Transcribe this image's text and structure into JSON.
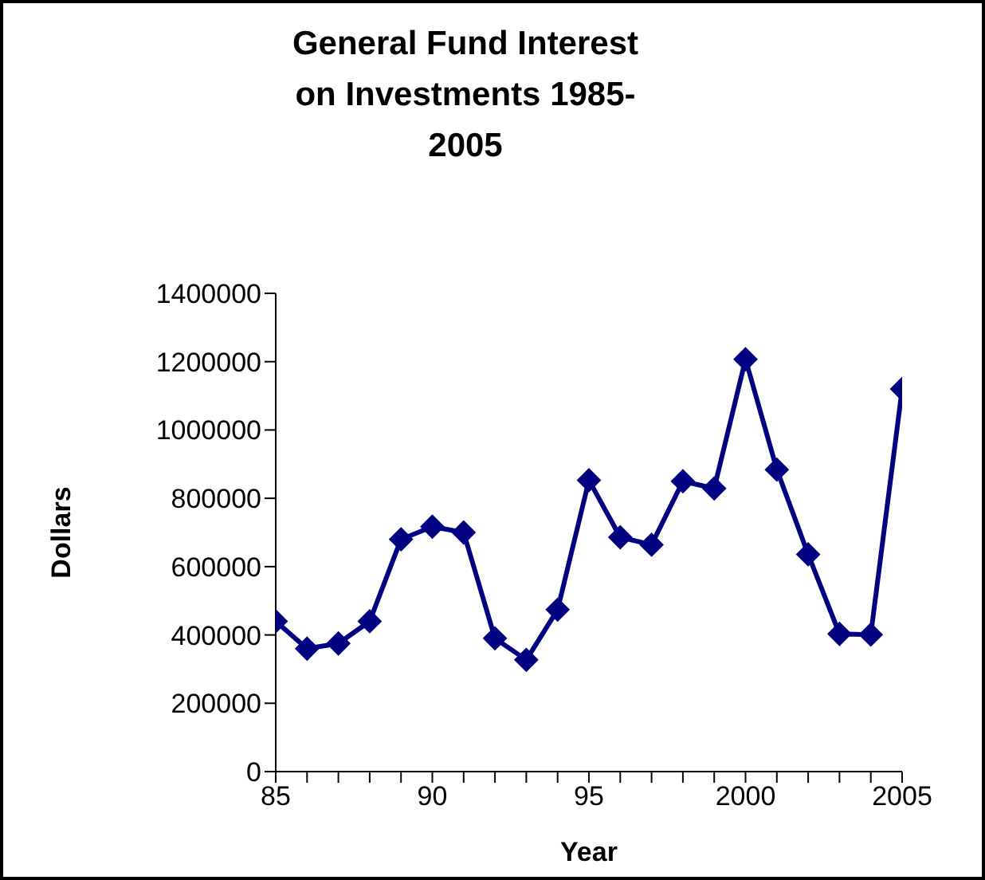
{
  "chart_data": {
    "type": "line",
    "title": "General Fund Interest on Investments 1985-2005",
    "xlabel": "Year",
    "ylabel": "Dollars",
    "x": [
      1985,
      1986,
      1987,
      1988,
      1989,
      1990,
      1991,
      1992,
      1993,
      1994,
      1995,
      1996,
      1997,
      1998,
      1999,
      2000,
      2001,
      2002,
      2003,
      2004,
      2005
    ],
    "series": [
      {
        "color": "#000080",
        "values": [
          440000,
          360000,
          375000,
          440000,
          680000,
          717000,
          700000,
          390000,
          327000,
          474000,
          853000,
          686000,
          664000,
          850000,
          829000,
          1207000,
          884000,
          636000,
          403000,
          401000,
          1120000
        ]
      }
    ],
    "xlim": [
      1985,
      2005
    ],
    "xticks": [
      {
        "value": 1985,
        "label": "85"
      },
      {
        "value": 1986,
        "label": null
      },
      {
        "value": 1987,
        "label": null
      },
      {
        "value": 1988,
        "label": null
      },
      {
        "value": 1989,
        "label": null
      },
      {
        "value": 1990,
        "label": "90"
      },
      {
        "value": 1991,
        "label": null
      },
      {
        "value": 1992,
        "label": null
      },
      {
        "value": 1993,
        "label": null
      },
      {
        "value": 1994,
        "label": null
      },
      {
        "value": 1995,
        "label": "95"
      },
      {
        "value": 1996,
        "label": null
      },
      {
        "value": 1997,
        "label": null
      },
      {
        "value": 1998,
        "label": null
      },
      {
        "value": 1999,
        "label": null
      },
      {
        "value": 2000,
        "label": "2000"
      },
      {
        "value": 2001,
        "label": null
      },
      {
        "value": 2002,
        "label": null
      },
      {
        "value": 2003,
        "label": null
      },
      {
        "value": 2004,
        "label": null
      },
      {
        "value": 2005,
        "label": "2005"
      }
    ],
    "ylim": [
      0,
      1400000
    ],
    "yticks": [
      0,
      200000,
      400000,
      600000,
      800000,
      1000000,
      1200000,
      1400000
    ],
    "grid": false,
    "legend": false,
    "marker": "diamond",
    "line_style": "solid"
  }
}
